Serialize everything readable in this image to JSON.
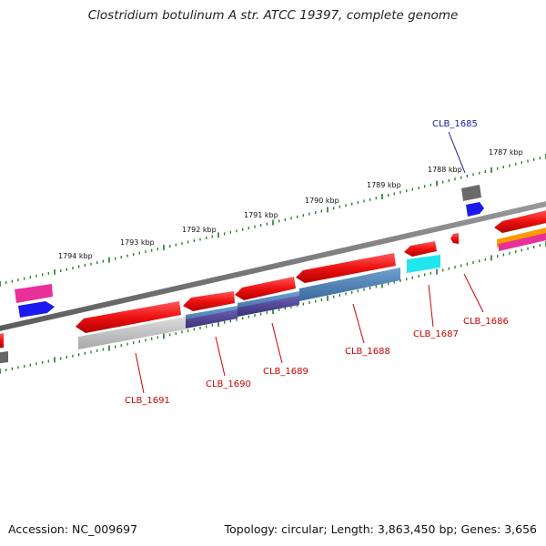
{
  "title": "Clostridium botulinum A str. ATCC 19397, complete genome",
  "footer": {
    "accession": "Accession: NC_009697",
    "topology": "Topology: circular; Length: 3,863,450 bp; Genes: 3,656"
  },
  "kbp_ticks": [
    "1794 kbp",
    "1793 kbp",
    "1792 kbp",
    "1791 kbp",
    "1790 kbp",
    "1789 kbp",
    "1788 kbp",
    "1787 kbp"
  ],
  "gene_labels": [
    "CLB_1685",
    "CLB_1686",
    "CLB_1687",
    "CLB_1688",
    "CLB_1689",
    "CLB_1690",
    "CLB_1691"
  ],
  "colors": {
    "backbone": "#7a7a7a",
    "tick": "#1f7a1f",
    "gene_red": "#ee1111",
    "cog_grey": "#bdbdbd",
    "cog_steel": "#4a7fb5",
    "cog_indigo": "#4b3f8f",
    "cog_cyan": "#22e6ee",
    "cog_blue": "#1a1aee",
    "cog_magenta": "#e8309a",
    "cog_orange": "#ff9a00"
  }
}
